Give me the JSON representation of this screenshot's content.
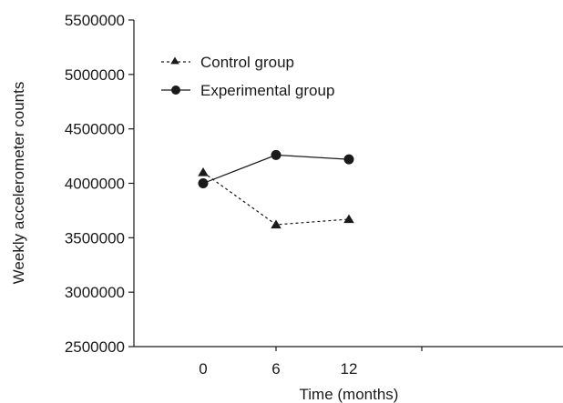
{
  "chart_data": {
    "type": "line",
    "title": "",
    "xlabel": "Time (months)",
    "ylabel": "Weekly accelerometer counts",
    "categories": [
      "0",
      "6",
      "12"
    ],
    "ylim": [
      2500000,
      5500000
    ],
    "yticks": [
      2500000,
      3000000,
      3500000,
      4000000,
      4500000,
      5000000,
      5500000
    ],
    "ytick_labels": [
      "2500000",
      "3000000",
      "3500000",
      "4000000",
      "4500000",
      "5000000",
      "5500000"
    ],
    "grid": false,
    "legend": "top-left",
    "series": [
      {
        "name": "Control group",
        "marker": "triangle",
        "line_style": "dashed",
        "values": [
          4100000,
          3620000,
          3670000
        ]
      },
      {
        "name": "Experimental group",
        "marker": "circle",
        "line_style": "solid",
        "values": [
          4000000,
          4260000,
          4220000
        ]
      }
    ],
    "colors": {
      "line": "#1a1a1a",
      "axis": "#1a1a1a"
    }
  }
}
